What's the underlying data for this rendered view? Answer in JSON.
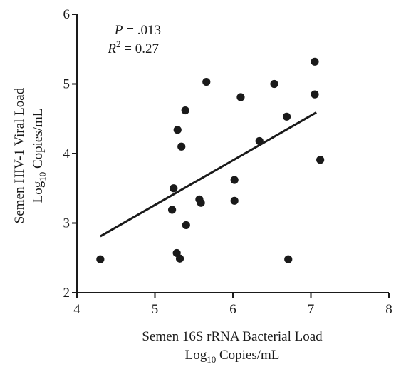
{
  "chart_data": {
    "type": "scatter",
    "xlabel_line1": "Semen 16S rRNA Bacterial Load",
    "xlabel_line2_pre": "Log",
    "xlabel_line2_sub": "10",
    "xlabel_line2_post": " Copies/mL",
    "ylabel_line1": "Semen HIV-1 Viral Load",
    "ylabel_line2_pre": "Log",
    "ylabel_line2_sub": "10",
    "ylabel_line2_post": " Copies/mL",
    "xlim": [
      4,
      8
    ],
    "ylim": [
      2,
      6
    ],
    "xticks": [
      "4",
      "5",
      "6",
      "7",
      "8"
    ],
    "yticks": [
      "2",
      "3",
      "4",
      "5",
      "6"
    ],
    "annotations": {
      "p_symbol": "P",
      "p_value": " = .013",
      "r_symbol": "R",
      "r_sup": "2",
      "r_value": " = 0.27"
    },
    "points": [
      {
        "x": 4.3,
        "y": 2.48
      },
      {
        "x": 5.22,
        "y": 3.19
      },
      {
        "x": 5.24,
        "y": 3.5
      },
      {
        "x": 5.28,
        "y": 2.57
      },
      {
        "x": 5.29,
        "y": 4.34
      },
      {
        "x": 5.32,
        "y": 2.49
      },
      {
        "x": 5.34,
        "y": 4.1
      },
      {
        "x": 5.39,
        "y": 4.62
      },
      {
        "x": 5.4,
        "y": 2.97
      },
      {
        "x": 5.57,
        "y": 3.34
      },
      {
        "x": 5.59,
        "y": 3.29
      },
      {
        "x": 5.66,
        "y": 5.03
      },
      {
        "x": 6.02,
        "y": 3.62
      },
      {
        "x": 6.02,
        "y": 3.32
      },
      {
        "x": 6.1,
        "y": 4.81
      },
      {
        "x": 6.34,
        "y": 4.18
      },
      {
        "x": 6.53,
        "y": 5.0
      },
      {
        "x": 6.69,
        "y": 4.53
      },
      {
        "x": 6.71,
        "y": 2.48
      },
      {
        "x": 7.05,
        "y": 5.32
      },
      {
        "x": 7.05,
        "y": 4.85
      },
      {
        "x": 7.12,
        "y": 3.91
      }
    ],
    "fit_line": {
      "x": [
        4.3,
        7.07
      ],
      "y": [
        2.81,
        4.59
      ]
    },
    "colors": {
      "points": "#1a1a1a",
      "line": "#1a1a1a",
      "axis": "#1a1a1a"
    }
  }
}
